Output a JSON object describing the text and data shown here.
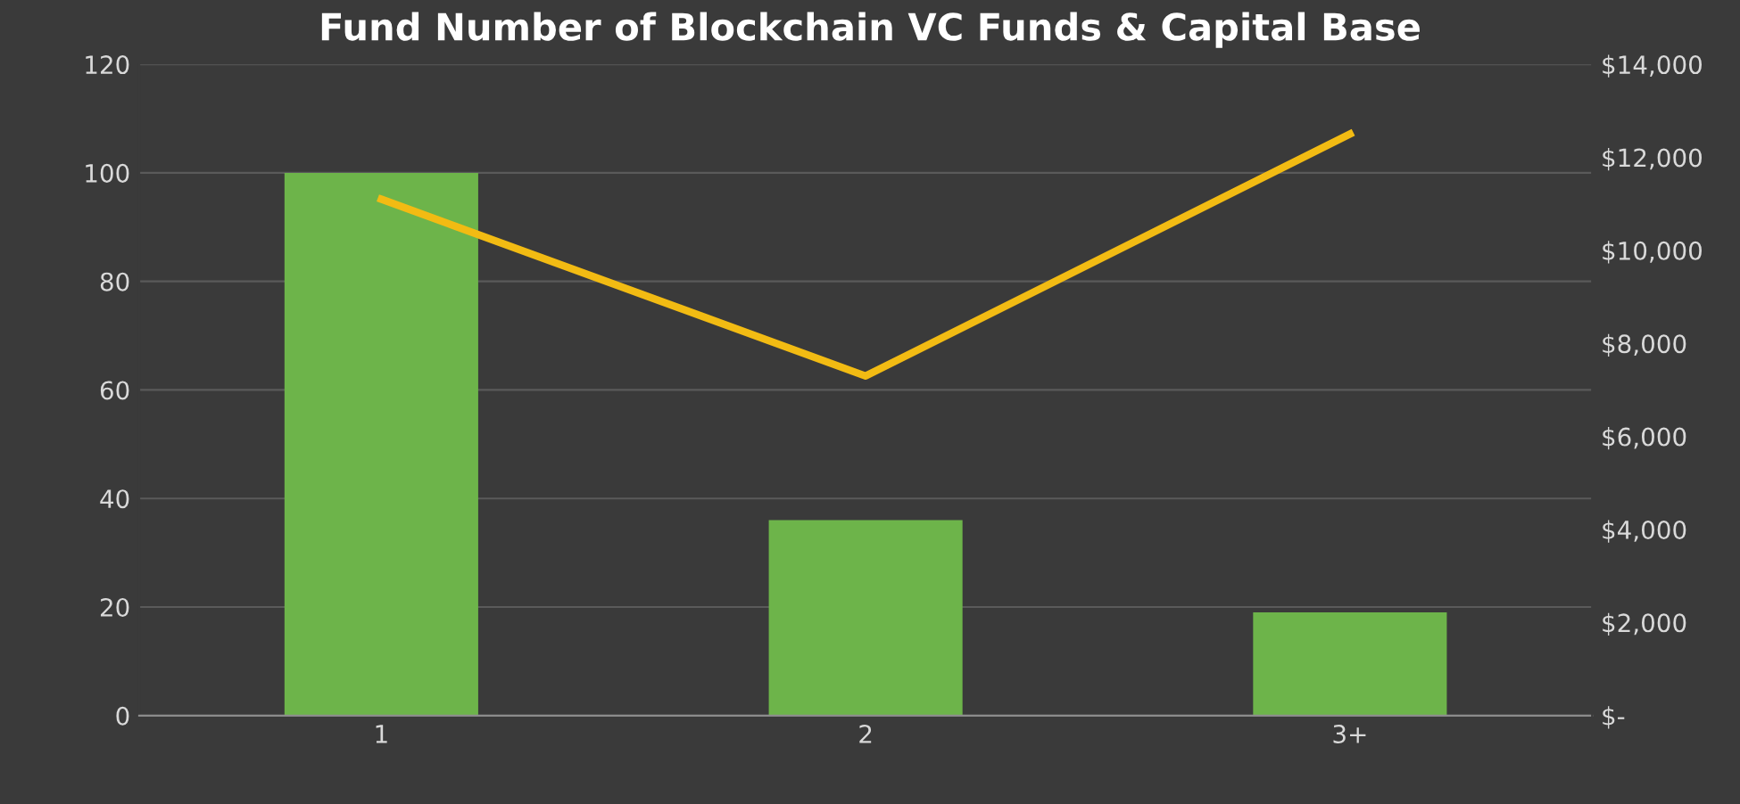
{
  "chart_data": {
    "type": "bar",
    "title": "Fund Number of Blockchain VC Funds & Capital Base",
    "categories": [
      "1",
      "2",
      "3+"
    ],
    "series": [
      {
        "color": "#6db44a",
        "values": [
          100,
          36,
          19
        ]
      },
      {
        "type": "line",
        "axis": "y2",
        "color": "#f2bb13",
        "values": [
          11100,
          7300,
          12500
        ]
      }
    ],
    "ylim": [
      0,
      120
    ],
    "yticks": [
      0,
      20,
      40,
      60,
      80,
      100,
      120
    ],
    "y2lim": [
      0,
      14000
    ],
    "y2ticks": [
      {
        "value": 0,
        "label": "$-"
      },
      {
        "value": 2000,
        "label": "$2,000"
      },
      {
        "value": 4000,
        "label": "$4,000"
      },
      {
        "value": 6000,
        "label": "$6,000"
      },
      {
        "value": 8000,
        "label": "$8,000"
      },
      {
        "value": 10000,
        "label": "$10,000"
      },
      {
        "value": 12000,
        "label": "$12,000"
      },
      {
        "value": 14000,
        "label": "$14,000"
      }
    ],
    "grid": "y",
    "marker": "none",
    "line_style": "solid"
  }
}
